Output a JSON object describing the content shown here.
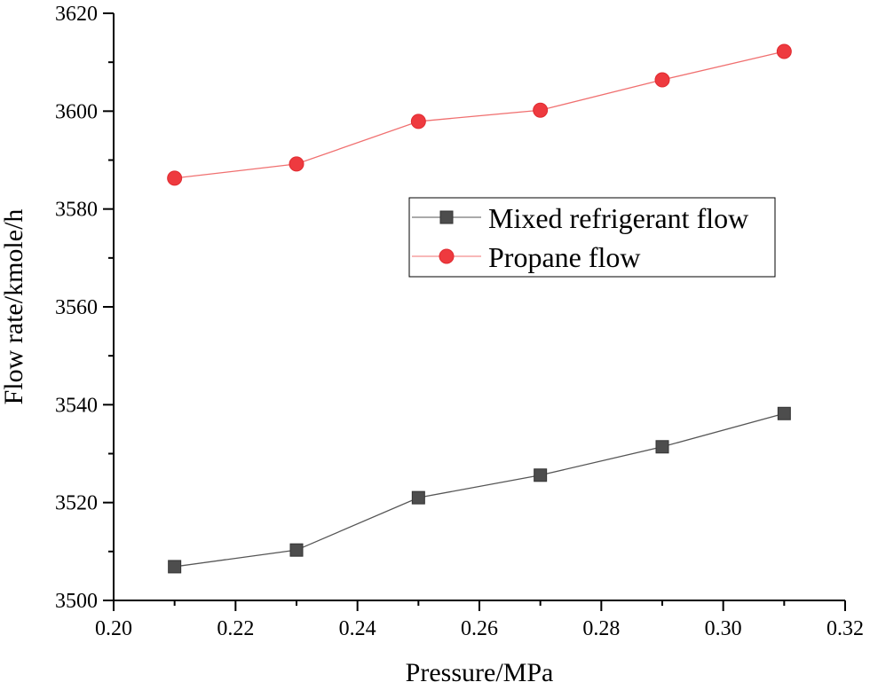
{
  "chart_data": {
    "type": "line",
    "title": "",
    "xlabel": "Pressure/MPa",
    "ylabel": "Flow rate/kmole/h",
    "xlim": [
      0.2,
      0.32
    ],
    "ylim": [
      3500,
      3620
    ],
    "x_ticks": [
      "0.20",
      "0.22",
      "0.24",
      "0.26",
      "0.28",
      "0.30",
      "0.32"
    ],
    "y_ticks": [
      "3500",
      "3520",
      "3540",
      "3560",
      "3580",
      "3600",
      "3620"
    ],
    "x": [
      0.21,
      0.23,
      0.25,
      0.27,
      0.29,
      0.31
    ],
    "series": [
      {
        "name": "Mixed refrigerant flow",
        "marker": "square",
        "color": "#4d4d4d",
        "line_color": "#555555",
        "values": [
          3506.9,
          3510.3,
          3521.0,
          3525.6,
          3531.4,
          3538.2
        ]
      },
      {
        "name": "Propane flow",
        "marker": "circle",
        "color": "#ee3a3f",
        "line_color": "#f07070",
        "values": [
          3586.3,
          3589.2,
          3597.9,
          3600.2,
          3606.4,
          3612.2
        ]
      }
    ],
    "legend_position": "center-right",
    "grid": false
  }
}
